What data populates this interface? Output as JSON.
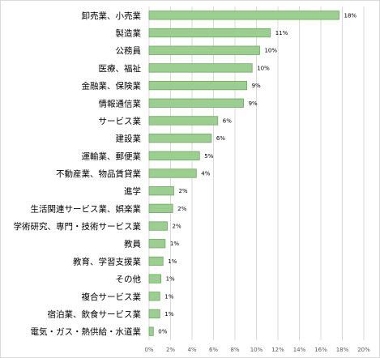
{
  "chart_data": {
    "type": "bar",
    "orientation": "horizontal",
    "title": "",
    "xlabel": "",
    "ylabel": "",
    "categories": [
      "卸売業、小売業",
      "製造業",
      "公務員",
      "医療、福祉",
      "金融業、保険業",
      "情報通信業",
      "サービス業",
      "建設業",
      "運輸業、郵便業",
      "不動産業、物品賃貸業",
      "進学",
      "生活関連サービス業、娯楽業",
      "学術研究、専門・技術サービス業",
      "教員",
      "教育、学習支援業",
      "その他",
      "複合サービス業",
      "宿泊業、飲食サービス業",
      "電気・ガス・熱供給・水道業"
    ],
    "values": [
      17.7,
      11.3,
      10.3,
      9.6,
      9.1,
      8.8,
      6.4,
      5.8,
      4.7,
      4.4,
      2.3,
      2.2,
      1.7,
      1.5,
      1.3,
      1.1,
      1.0,
      1.0,
      0.4
    ],
    "value_labels": [
      "18%",
      "11%",
      "10%",
      "10%",
      "9%",
      "9%",
      "6%",
      "6%",
      "5%",
      "4%",
      "2%",
      "2%",
      "2%",
      "1%",
      "1%",
      "1%",
      "1%",
      "1%",
      "0%"
    ],
    "xlim": [
      0,
      20
    ],
    "xticks": [
      0,
      2,
      4,
      6,
      8,
      10,
      12,
      14,
      16,
      18,
      20
    ],
    "xtick_labels": [
      "0%",
      "2%",
      "4%",
      "6%",
      "8%",
      "10%",
      "12%",
      "14%",
      "16%",
      "18%",
      "20%"
    ],
    "grid": true,
    "legend": "none",
    "colors": {
      "bar_fill": "#9bcf8f",
      "bar_stroke": "#6fa862",
      "grid": "#d9d9d9",
      "frame": "#d9d9d9"
    }
  }
}
